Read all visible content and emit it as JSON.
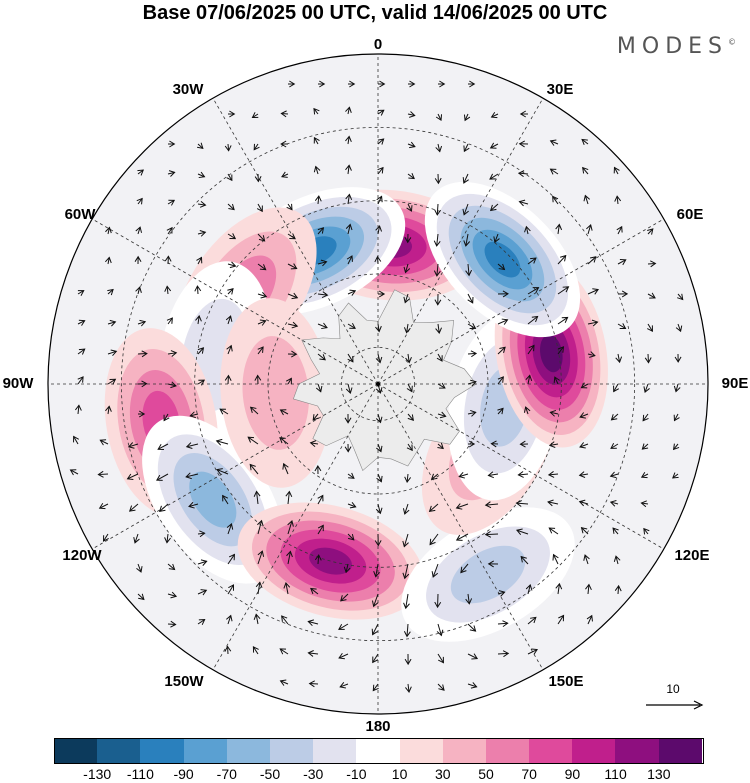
{
  "title": "Base 07/06/2025 00 UTC, valid 14/06/2025 00 UTC",
  "brand": "MODES",
  "brand_mark": "©",
  "longitude_labels": [
    "0",
    "30E",
    "60E",
    "90E",
    "120E",
    "150E",
    "180",
    "150W",
    "120W",
    "90W",
    "60W",
    "30W"
  ],
  "reference_vector": {
    "label": "10"
  },
  "colorbar": {
    "colors": [
      "#0c3a5c",
      "#1a5f8f",
      "#2a80bd",
      "#5aa0d2",
      "#8cb8dd",
      "#bcccE6",
      "#e2e2ef",
      "#ffffff",
      "#fbdcdc",
      "#f6b3c2",
      "#ec7fac",
      "#df4a9c",
      "#c01f8c",
      "#8e0f7f",
      "#5c0a6c"
    ],
    "ticks": [
      "-130",
      "-110",
      "-90",
      "-70",
      "-50",
      "-30",
      "-10",
      "10",
      "30",
      "50",
      "70",
      "90",
      "110",
      "130"
    ]
  },
  "anomalies": [
    {
      "lon": 5,
      "lat": -52,
      "value": 120
    },
    {
      "lon": -25,
      "lat": -50,
      "value": -110
    },
    {
      "lon": -55,
      "lat": -46,
      "value": 60
    },
    {
      "lon": -80,
      "lat": -45,
      "value": -40
    },
    {
      "lon": -100,
      "lat": -30,
      "value": 80
    },
    {
      "lon": -125,
      "lat": -35,
      "value": -80
    },
    {
      "lon": -165,
      "lat": -40,
      "value": 120
    },
    {
      "lon": 150,
      "lat": -30,
      "value": -60
    },
    {
      "lon": 120,
      "lat": -55,
      "value": 40
    },
    {
      "lon": 100,
      "lat": -55,
      "value": -60
    },
    {
      "lon": 80,
      "lat": -42,
      "value": 130
    },
    {
      "lon": 45,
      "lat": -42,
      "value": -110
    },
    {
      "lon": -95,
      "lat": -62,
      "value": 30
    }
  ]
}
